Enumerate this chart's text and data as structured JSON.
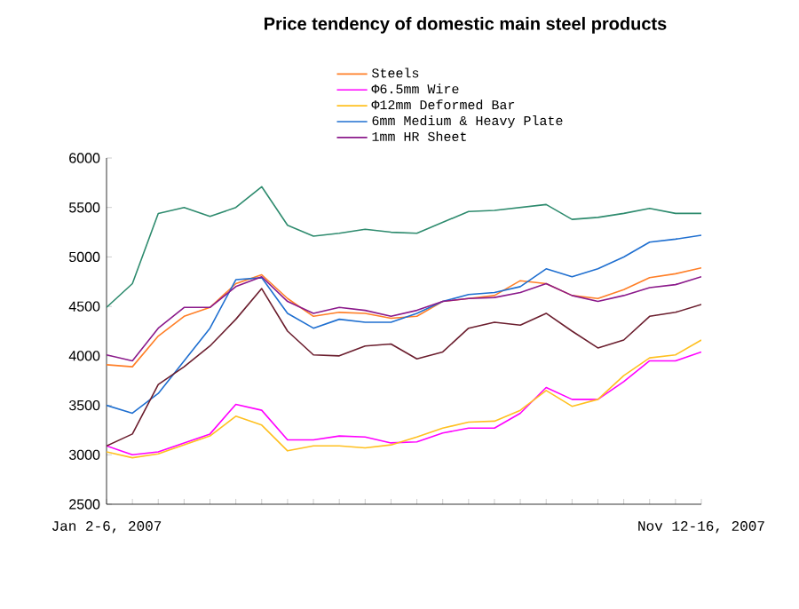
{
  "chart_data": {
    "type": "line",
    "title": "Price tendency of domestic main steel products",
    "categories": [
      "Jan 2-6, 2007",
      null,
      null,
      null,
      null,
      null,
      null,
      null,
      null,
      null,
      null,
      null,
      null,
      null,
      null,
      null,
      null,
      null,
      null,
      null,
      null,
      null,
      null,
      "Nov 12-16, 2007"
    ],
    "ylim": [
      2500,
      6000
    ],
    "yticks": [
      2500,
      3000,
      3500,
      4000,
      4500,
      5000,
      5500,
      6000
    ],
    "legend": "top",
    "grid": false,
    "series": [
      {
        "color": "#2e8b6e",
        "values": [
          4490,
          4730,
          5440,
          5500,
          5410,
          5500,
          5710,
          5320,
          5210,
          5240,
          5280,
          5250,
          5240,
          5350,
          5460,
          5470,
          5500,
          5530,
          5380,
          5400,
          5440,
          5490,
          5440,
          5440
        ]
      },
      {
        "name": "Steels",
        "color": "#ff7f27",
        "values": [
          3910,
          3890,
          4200,
          4400,
          4490,
          4730,
          4820,
          4580,
          4400,
          4440,
          4430,
          4380,
          4400,
          4550,
          4580,
          4610,
          4760,
          4730,
          4610,
          4580,
          4670,
          4790,
          4830,
          4890
        ]
      },
      {
        "name": "Φ6.5mm Wire",
        "color": "#ff00ff",
        "values": [
          3090,
          3000,
          3030,
          3120,
          3210,
          3510,
          3450,
          3150,
          3150,
          3190,
          3180,
          3120,
          3130,
          3220,
          3270,
          3270,
          3420,
          3680,
          3560,
          3560,
          3740,
          3950,
          3950,
          4040
        ]
      },
      {
        "name": "Φ12mm Deformed Bar",
        "color": "#ffc020",
        "values": [
          3030,
          2970,
          3010,
          3100,
          3190,
          3390,
          3300,
          3040,
          3090,
          3090,
          3070,
          3100,
          3180,
          3270,
          3330,
          3340,
          3450,
          3650,
          3490,
          3560,
          3800,
          3980,
          4010,
          4160
        ]
      },
      {
        "name": "6mm Medium & Heavy Plate",
        "color": "#1f6fd0",
        "values": [
          3500,
          3420,
          3620,
          3950,
          4280,
          4770,
          4790,
          4430,
          4280,
          4370,
          4340,
          4340,
          4430,
          4550,
          4620,
          4640,
          4700,
          4880,
          4800,
          4880,
          5000,
          5150,
          5180,
          5220
        ]
      },
      {
        "name": "1mm HR Sheet",
        "color": "#8b1a8b",
        "values": [
          4010,
          3950,
          4280,
          4490,
          4490,
          4700,
          4800,
          4550,
          4430,
          4490,
          4460,
          4400,
          4460,
          4550,
          4580,
          4590,
          4640,
          4730,
          4610,
          4550,
          4610,
          4690,
          4720,
          4800
        ]
      },
      {
        "color": "#6b1e2e",
        "values": [
          3090,
          3210,
          3710,
          3890,
          4100,
          4370,
          4680,
          4250,
          4010,
          4000,
          4100,
          4120,
          3970,
          4040,
          4280,
          4340,
          4310,
          4430,
          4250,
          4080,
          4160,
          4400,
          4440,
          4520
        ]
      }
    ]
  }
}
